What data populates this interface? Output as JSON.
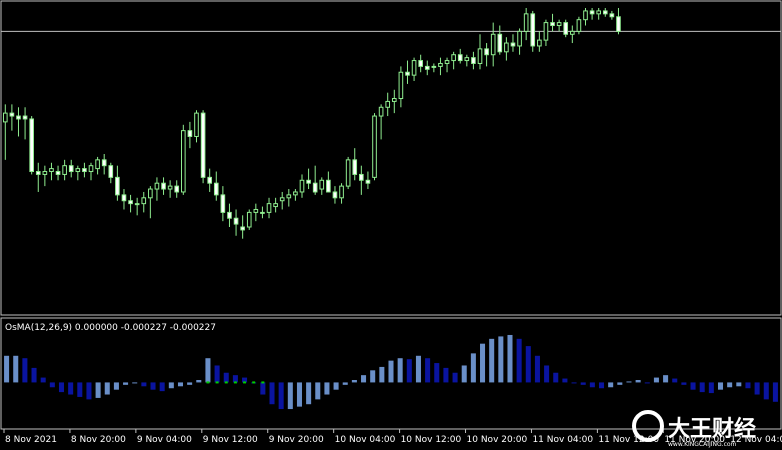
{
  "colors": {
    "background": "#000000",
    "frame": "#c0c0c0",
    "candle_bull_body": "#000000",
    "candle_bull_border": "#90ee90",
    "candle_bear_body": "#ffffff",
    "candle_wick": "#90ee90",
    "price_line": "#c0c0c0",
    "osma_light": "#6a8fc8",
    "osma_dark": "#0a14a0",
    "signal_dot": "#00d000",
    "axis_text": "#ffffff"
  },
  "chart_data": [
    {
      "type": "candlestick",
      "title": "",
      "ylim": [
        0,
        100
      ],
      "price_line_level": 92,
      "candles": [
        {
          "o": 61,
          "h": 67,
          "l": 48,
          "c": 64
        },
        {
          "o": 64,
          "h": 67,
          "l": 58,
          "c": 63
        },
        {
          "o": 63,
          "h": 66,
          "l": 56,
          "c": 62
        },
        {
          "o": 63,
          "h": 66,
          "l": 55,
          "c": 62
        },
        {
          "o": 62,
          "h": 63,
          "l": 43,
          "c": 44
        },
        {
          "o": 44,
          "h": 47,
          "l": 37,
          "c": 43
        },
        {
          "o": 43,
          "h": 46,
          "l": 39,
          "c": 44
        },
        {
          "o": 44,
          "h": 47,
          "l": 41,
          "c": 45
        },
        {
          "o": 44,
          "h": 46,
          "l": 41,
          "c": 43
        },
        {
          "o": 43,
          "h": 48,
          "l": 41,
          "c": 46
        },
        {
          "o": 46,
          "h": 48,
          "l": 42,
          "c": 44
        },
        {
          "o": 44,
          "h": 46,
          "l": 41,
          "c": 45
        },
        {
          "o": 45,
          "h": 47,
          "l": 42,
          "c": 44
        },
        {
          "o": 44,
          "h": 47,
          "l": 41,
          "c": 46
        },
        {
          "o": 45,
          "h": 49,
          "l": 43,
          "c": 48
        },
        {
          "o": 48,
          "h": 50,
          "l": 43,
          "c": 46
        },
        {
          "o": 46,
          "h": 47,
          "l": 40,
          "c": 42
        },
        {
          "o": 42,
          "h": 46,
          "l": 34,
          "c": 36
        },
        {
          "o": 36,
          "h": 38,
          "l": 31,
          "c": 34
        },
        {
          "o": 34,
          "h": 36,
          "l": 30,
          "c": 33
        },
        {
          "o": 33,
          "h": 35,
          "l": 29,
          "c": 33
        },
        {
          "o": 33,
          "h": 37,
          "l": 30,
          "c": 35
        },
        {
          "o": 35,
          "h": 39,
          "l": 28,
          "c": 38
        },
        {
          "o": 38,
          "h": 42,
          "l": 34,
          "c": 40
        },
        {
          "o": 40,
          "h": 42,
          "l": 36,
          "c": 38
        },
        {
          "o": 38,
          "h": 41,
          "l": 35,
          "c": 39
        },
        {
          "o": 39,
          "h": 41,
          "l": 35,
          "c": 37
        },
        {
          "o": 37,
          "h": 60,
          "l": 36,
          "c": 58
        },
        {
          "o": 58,
          "h": 61,
          "l": 52,
          "c": 56
        },
        {
          "o": 56,
          "h": 65,
          "l": 54,
          "c": 64
        },
        {
          "o": 64,
          "h": 65,
          "l": 40,
          "c": 42
        },
        {
          "o": 42,
          "h": 45,
          "l": 37,
          "c": 40
        },
        {
          "o": 40,
          "h": 44,
          "l": 34,
          "c": 36
        },
        {
          "o": 36,
          "h": 39,
          "l": 27,
          "c": 30
        },
        {
          "o": 30,
          "h": 33,
          "l": 25,
          "c": 28
        },
        {
          "o": 28,
          "h": 31,
          "l": 22,
          "c": 26
        },
        {
          "o": 25,
          "h": 29,
          "l": 21,
          "c": 24
        },
        {
          "o": 25,
          "h": 31,
          "l": 24,
          "c": 30
        },
        {
          "o": 30,
          "h": 33,
          "l": 27,
          "c": 31
        },
        {
          "o": 30,
          "h": 32,
          "l": 28,
          "c": 30
        },
        {
          "o": 30,
          "h": 35,
          "l": 28,
          "c": 33
        },
        {
          "o": 32,
          "h": 35,
          "l": 30,
          "c": 33
        },
        {
          "o": 34,
          "h": 37,
          "l": 31,
          "c": 35
        },
        {
          "o": 35,
          "h": 38,
          "l": 32,
          "c": 36
        },
        {
          "o": 36,
          "h": 38,
          "l": 34,
          "c": 37
        },
        {
          "o": 37,
          "h": 43,
          "l": 35,
          "c": 41
        },
        {
          "o": 41,
          "h": 45,
          "l": 38,
          "c": 40
        },
        {
          "o": 40,
          "h": 46,
          "l": 36,
          "c": 37
        },
        {
          "o": 38,
          "h": 42,
          "l": 36,
          "c": 41
        },
        {
          "o": 41,
          "h": 44,
          "l": 38,
          "c": 37
        },
        {
          "o": 37,
          "h": 39,
          "l": 33,
          "c": 35
        },
        {
          "o": 35,
          "h": 40,
          "l": 33,
          "c": 39
        },
        {
          "o": 39,
          "h": 49,
          "l": 38,
          "c": 48
        },
        {
          "o": 48,
          "h": 52,
          "l": 41,
          "c": 43
        },
        {
          "o": 43,
          "h": 46,
          "l": 36,
          "c": 41
        },
        {
          "o": 41,
          "h": 44,
          "l": 38,
          "c": 40
        },
        {
          "o": 42,
          "h": 64,
          "l": 41,
          "c": 63
        },
        {
          "o": 63,
          "h": 67,
          "l": 55,
          "c": 66
        },
        {
          "o": 66,
          "h": 71,
          "l": 63,
          "c": 68
        },
        {
          "o": 68,
          "h": 72,
          "l": 64,
          "c": 69
        },
        {
          "o": 69,
          "h": 80,
          "l": 66,
          "c": 78
        },
        {
          "o": 78,
          "h": 82,
          "l": 74,
          "c": 77
        },
        {
          "o": 77,
          "h": 83,
          "l": 75,
          "c": 82
        },
        {
          "o": 82,
          "h": 84,
          "l": 78,
          "c": 80
        },
        {
          "o": 80,
          "h": 82,
          "l": 77,
          "c": 79
        },
        {
          "o": 80,
          "h": 81,
          "l": 78,
          "c": 80
        },
        {
          "o": 80,
          "h": 83,
          "l": 77,
          "c": 81
        },
        {
          "o": 81,
          "h": 83,
          "l": 78,
          "c": 82
        },
        {
          "o": 82,
          "h": 85,
          "l": 79,
          "c": 84
        },
        {
          "o": 84,
          "h": 86,
          "l": 81,
          "c": 82
        },
        {
          "o": 82,
          "h": 84,
          "l": 80,
          "c": 83
        },
        {
          "o": 83,
          "h": 85,
          "l": 79,
          "c": 81
        },
        {
          "o": 81,
          "h": 91,
          "l": 79,
          "c": 86
        },
        {
          "o": 86,
          "h": 88,
          "l": 80,
          "c": 84
        },
        {
          "o": 84,
          "h": 95,
          "l": 80,
          "c": 91
        },
        {
          "o": 91,
          "h": 94,
          "l": 84,
          "c": 85
        },
        {
          "o": 85,
          "h": 90,
          "l": 82,
          "c": 88
        },
        {
          "o": 88,
          "h": 91,
          "l": 85,
          "c": 87
        },
        {
          "o": 87,
          "h": 93,
          "l": 84,
          "c": 92
        },
        {
          "o": 92,
          "h": 100,
          "l": 89,
          "c": 98
        },
        {
          "o": 98,
          "h": 99,
          "l": 85,
          "c": 87
        },
        {
          "o": 87,
          "h": 92,
          "l": 85,
          "c": 89
        },
        {
          "o": 89,
          "h": 96,
          "l": 87,
          "c": 95
        },
        {
          "o": 95,
          "h": 98,
          "l": 92,
          "c": 94
        },
        {
          "o": 94,
          "h": 96,
          "l": 92,
          "c": 95
        },
        {
          "o": 95,
          "h": 96,
          "l": 90,
          "c": 91
        },
        {
          "o": 91,
          "h": 94,
          "l": 88,
          "c": 92
        },
        {
          "o": 92,
          "h": 97,
          "l": 91,
          "c": 96
        },
        {
          "o": 96,
          "h": 100,
          "l": 94,
          "c": 99
        },
        {
          "o": 99,
          "h": 100,
          "l": 96,
          "c": 98
        },
        {
          "o": 98,
          "h": 100,
          "l": 96,
          "c": 99
        },
        {
          "o": 99,
          "h": 100,
          "l": 97,
          "c": 98
        },
        {
          "o": 98,
          "h": 99,
          "l": 96,
          "c": 97
        },
        {
          "o": 97,
          "h": 100,
          "l": 91,
          "c": 92
        }
      ]
    },
    {
      "type": "bar",
      "title": "OsMA(12,26,9) 0.000000 -0.000227 -0.000227",
      "ylim": [
        -0.9,
        1.0
      ],
      "values": [
        0.55,
        0.55,
        0.5,
        0.3,
        0.1,
        -0.1,
        -0.2,
        -0.25,
        -0.3,
        -0.35,
        -0.32,
        -0.25,
        -0.15,
        -0.05,
        0.0,
        -0.08,
        -0.15,
        -0.18,
        -0.12,
        -0.08,
        -0.05,
        0.05,
        0.5,
        0.35,
        0.2,
        0.15,
        0.1,
        0.0,
        -0.25,
        -0.45,
        -0.55,
        -0.55,
        -0.5,
        -0.45,
        -0.35,
        -0.25,
        -0.15,
        -0.05,
        0.05,
        0.15,
        0.25,
        0.32,
        0.45,
        0.5,
        0.48,
        0.55,
        0.5,
        0.4,
        0.3,
        0.2,
        0.35,
        0.6,
        0.8,
        0.9,
        0.95,
        0.98,
        0.9,
        0.75,
        0.55,
        0.35,
        0.2,
        0.08,
        0.0,
        -0.05,
        -0.1,
        -0.12,
        -0.1,
        -0.05,
        0.02,
        0.05,
        0.0,
        0.1,
        0.15,
        0.08,
        -0.05,
        -0.15,
        -0.2,
        -0.22,
        -0.15,
        -0.1,
        -0.08,
        -0.12,
        -0.25,
        -0.35,
        -0.4
      ],
      "signal_dots": [
        22,
        23,
        24,
        25,
        26,
        27,
        28
      ]
    }
  ],
  "x_axis": {
    "labels": [
      {
        "text": "8 Nov 2021",
        "index": 0
      },
      {
        "text": "8 Nov 20:00",
        "index": 10
      },
      {
        "text": "9 Nov 04:00",
        "index": 20
      },
      {
        "text": "9 Nov 12:00",
        "index": 30
      },
      {
        "text": "9 Nov 20:00",
        "index": 40
      },
      {
        "text": "10 Nov 04:00",
        "index": 50
      },
      {
        "text": "10 Nov 12:00",
        "index": 60
      },
      {
        "text": "10 Nov 20:00",
        "index": 70
      },
      {
        "text": "11 Nov 04:00",
        "index": 80
      },
      {
        "text": "11 Nov 12:00",
        "index": 90
      },
      {
        "text": "11 Nov 20:00",
        "index": 100
      },
      {
        "text": "12 Nov 04:00",
        "index": 110
      }
    ],
    "total_slots": 118
  },
  "watermark": {
    "text": "大王财经",
    "sub": "www.KINGCAIJING.com"
  }
}
